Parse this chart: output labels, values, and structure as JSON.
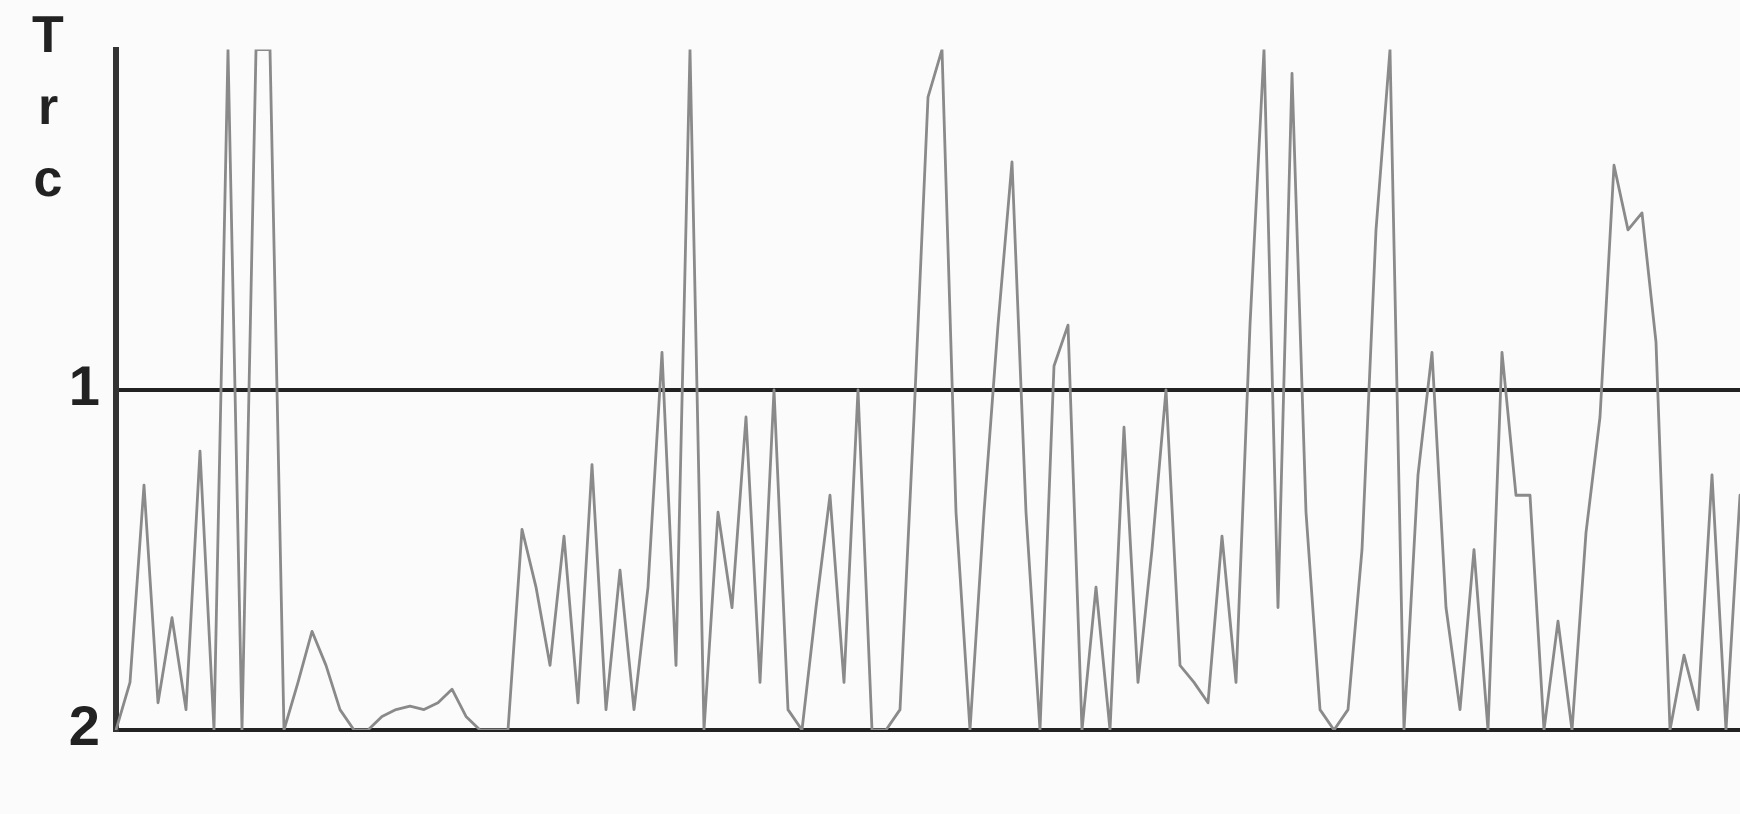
{
  "chart_data": {
    "type": "line",
    "ylabel": "Trc",
    "categories": [
      null,
      null,
      null,
      null,
      null,
      null,
      null,
      null,
      null,
      null,
      null,
      null,
      null,
      null,
      null,
      null,
      null,
      null,
      null,
      null,
      null,
      null,
      null,
      null,
      null,
      null,
      null,
      null,
      null,
      null,
      null,
      null,
      null,
      null,
      null,
      null,
      null,
      null,
      null,
      null,
      null,
      null,
      null,
      null,
      null,
      null,
      null,
      null,
      null,
      null,
      null,
      null,
      null,
      null,
      null,
      null,
      null,
      null,
      null,
      null,
      null,
      null,
      null,
      null,
      null,
      null,
      null,
      null,
      null,
      null,
      null,
      null,
      null,
      null,
      null,
      null,
      null,
      null,
      null,
      null,
      null,
      null,
      null,
      null,
      null,
      null,
      null,
      null,
      null,
      null,
      null,
      null,
      null,
      null,
      null,
      null,
      null,
      null,
      null,
      null,
      null,
      null,
      null,
      null,
      null,
      null,
      null,
      null,
      null,
      null,
      null,
      null,
      null,
      null,
      null,
      null,
      null
    ],
    "series": [
      {
        "color": "#8a8a8a",
        "values": [
          2,
          1.86,
          1.28,
          1.92,
          1.67,
          1.94,
          1.18,
          2,
          0,
          2,
          0,
          0,
          2,
          1.86,
          1.71,
          1.81,
          1.94,
          2,
          2,
          1.96,
          1.94,
          1.93,
          1.94,
          1.92,
          1.88,
          1.96,
          2,
          2,
          2,
          1.41,
          1.58,
          1.81,
          1.43,
          1.92,
          1.22,
          1.94,
          1.53,
          1.94,
          1.58,
          0.89,
          1.81,
          0,
          2,
          1.36,
          1.64,
          1.08,
          1.86,
          1,
          1.94,
          2,
          1.64,
          1.31,
          1.86,
          1,
          2,
          2,
          1.94,
          1.08,
          0.14,
          0,
          1.36,
          2,
          1.36,
          0.81,
          0.33,
          1.36,
          2,
          0.93,
          0.81,
          2,
          1.58,
          2,
          1.11,
          1.86,
          1.47,
          1,
          1.81,
          1.86,
          1.92,
          1.43,
          1.86,
          0.81,
          0,
          1.64,
          0.07,
          1.36,
          1.94,
          2,
          1.94,
          1.47,
          0.53,
          0,
          2,
          1.25,
          0.89,
          1.64,
          1.94,
          1.47,
          2,
          0.89,
          1.31,
          1.31,
          2,
          1.68,
          2,
          1.42,
          1.08,
          0.34,
          0.53,
          0.48,
          0.86,
          2,
          1.78,
          1.94,
          1.25,
          2,
          1.31
        ]
      }
    ],
    "ylim": [
      2,
      0
    ],
    "yticks": [
      1,
      2
    ],
    "grid": "y",
    "tick_labels": "y",
    "marker": "none",
    "line_style": "solid",
    "legend": false
  }
}
